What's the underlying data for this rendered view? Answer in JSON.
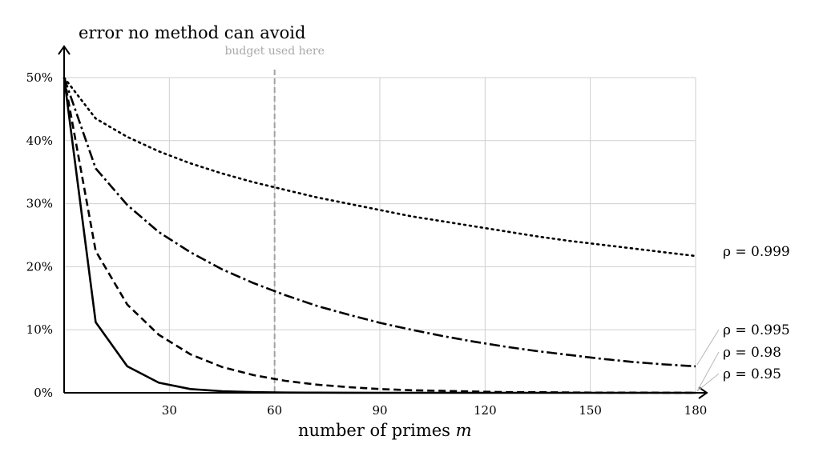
{
  "chart_data": {
    "type": "line",
    "title": "error no method can avoid",
    "xlabel": "number of primes m",
    "xlabel_text": "number of primes ",
    "xlabel_var": "m",
    "ylabel": "",
    "xlim": [
      0,
      180
    ],
    "ylim": [
      0,
      50
    ],
    "xticks": [
      30,
      60,
      90,
      120,
      150,
      180
    ],
    "yticks": [
      0,
      10,
      20,
      30,
      40,
      50
    ],
    "ytick_suffix": "%",
    "grid": true,
    "annotation": {
      "text": "budget used here",
      "x": 60
    },
    "series": [
      {
        "name": "ρ = 0.999",
        "style": "dotted",
        "x": [
          0,
          9,
          18,
          27,
          36,
          45,
          54,
          63,
          72,
          81,
          90,
          99,
          108,
          117,
          126,
          135,
          144,
          153,
          162,
          171,
          180
        ],
        "y": [
          50,
          43.5,
          40.6,
          38.3,
          36.4,
          34.8,
          33.4,
          32.2,
          31.0,
          30.0,
          29.0,
          28.0,
          27.2,
          26.4,
          25.6,
          24.8,
          24.1,
          23.5,
          22.9,
          22.3,
          21.7
        ]
      },
      {
        "name": "ρ = 0.995",
        "style": "dashdot",
        "x": [
          0,
          9,
          18,
          27,
          36,
          45,
          54,
          63,
          72,
          81,
          90,
          99,
          108,
          117,
          126,
          135,
          144,
          153,
          162,
          171,
          180
        ],
        "y": [
          50,
          35.6,
          29.8,
          25.5,
          22.3,
          19.6,
          17.4,
          15.5,
          13.8,
          12.4,
          11.1,
          10.0,
          9.0,
          8.1,
          7.3,
          6.6,
          6.0,
          5.4,
          4.9,
          4.5,
          4.2
        ]
      },
      {
        "name": "ρ = 0.98",
        "style": "dashed",
        "x": [
          0,
          9,
          18,
          27,
          36,
          45,
          54,
          63,
          72,
          81,
          90,
          99,
          108,
          117,
          126,
          135,
          144,
          153,
          162,
          171,
          180
        ],
        "y": [
          50,
          22.5,
          14.0,
          9.2,
          6.1,
          4.1,
          2.8,
          1.9,
          1.3,
          0.9,
          0.6,
          0.4,
          0.3,
          0.2,
          0.1,
          0.1,
          0.05,
          0.03,
          0.02,
          0.01,
          0
        ]
      },
      {
        "name": "ρ = 0.95",
        "style": "solid",
        "x": [
          0,
          9,
          18,
          27,
          36,
          45,
          54,
          63,
          72,
          81,
          90,
          99,
          108,
          117,
          126,
          135,
          144,
          153,
          162,
          171,
          180
        ],
        "y": [
          50,
          11.2,
          4.2,
          1.6,
          0.6,
          0.25,
          0.1,
          0.04,
          0.02,
          0.01,
          0,
          0,
          0,
          0,
          0,
          0,
          0,
          0,
          0,
          0,
          0
        ]
      }
    ]
  }
}
